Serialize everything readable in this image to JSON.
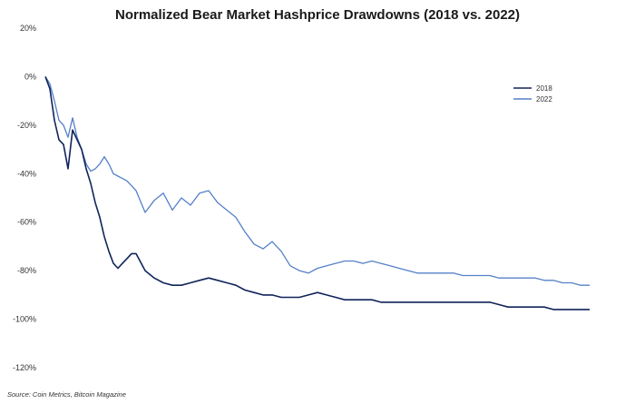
{
  "chart_data": {
    "type": "line",
    "title": "Normalized Bear Market Hashprice Drawdowns (2018 vs. 2022)",
    "xlabel": "",
    "ylabel": "",
    "ylim": [
      -120,
      20
    ],
    "y_ticks": [
      "20%",
      "0%",
      "-20%",
      "-40%",
      "-60%",
      "-80%",
      "-100%",
      "-120%"
    ],
    "y_tick_values": [
      20,
      0,
      -20,
      -40,
      -60,
      -80,
      -100,
      -120
    ],
    "grid": false,
    "legend": "right",
    "x": [
      0,
      5,
      10,
      15,
      20,
      25,
      30,
      35,
      40,
      45,
      50,
      55,
      60,
      65,
      70,
      75,
      80,
      85,
      90,
      95,
      100,
      110,
      120,
      130,
      140,
      150,
      160,
      170,
      180,
      190,
      200,
      210,
      220,
      230,
      240,
      250,
      260,
      270,
      280,
      290,
      300,
      310,
      320,
      330,
      340,
      350,
      360,
      370,
      380,
      390,
      400,
      410,
      420,
      430,
      440,
      450,
      460,
      470,
      480,
      490,
      500,
      510,
      520,
      530,
      540,
      550,
      560,
      570,
      580,
      590,
      600
    ],
    "series": [
      {
        "name": "2018",
        "color": "#10245a",
        "values": [
          0,
          -5,
          -18,
          -26,
          -28,
          -38,
          -22,
          -26,
          -30,
          -38,
          -44,
          -52,
          -58,
          -66,
          -72,
          -77,
          -79,
          -77,
          -75,
          -73,
          -73,
          -80,
          -83,
          -85,
          -86,
          -86,
          -85,
          -84,
          -83,
          -84,
          -85,
          -86,
          -88,
          -89,
          -90,
          -90,
          -91,
          -91,
          -91,
          -90,
          -89,
          -90,
          -91,
          -92,
          -92,
          -92,
          -92,
          -93,
          -93,
          -93,
          -93,
          -93,
          -93,
          -93,
          -93,
          -93,
          -93,
          -93,
          -93,
          -93,
          -94,
          -95,
          -95,
          -95,
          -95,
          -95,
          -96,
          -96,
          -96,
          -96,
          -96
        ]
      },
      {
        "name": "2022",
        "color": "#5580c8",
        "values": [
          0,
          -3,
          -10,
          -18,
          -20,
          -25,
          -17,
          -25,
          -30,
          -36,
          -39,
          -38,
          -36,
          -33,
          -36,
          -40,
          -41,
          -42,
          -43,
          -45,
          -47,
          -56,
          -51,
          -48,
          -55,
          -50,
          -53,
          -48,
          -47,
          -52,
          -55,
          -58,
          -64,
          -69,
          -71,
          -68,
          -72,
          -78,
          -80,
          -81,
          -79,
          -78,
          -77,
          -76,
          -76,
          -77,
          -76,
          -77,
          -78,
          -79,
          -80,
          -81,
          -81,
          -81,
          -81,
          -81,
          -82,
          -82,
          -82,
          -82,
          -83,
          -83,
          -83,
          -83,
          -83,
          -84,
          -84,
          -85,
          -85,
          -86,
          -86
        ]
      }
    ]
  },
  "source": "Source: Coin Metrics, Bitcoin Magazine"
}
